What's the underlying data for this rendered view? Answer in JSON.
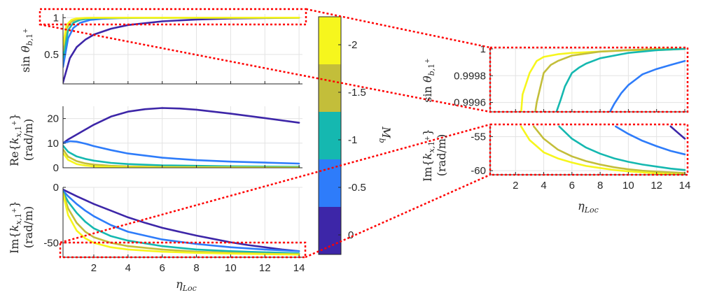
{
  "chart_data": [
    {
      "type": "line",
      "panel": "main-top",
      "ylabel": "sin θb,1+",
      "xlim": [
        0.2,
        14.2
      ],
      "ylim": [
        0.1,
        1.05
      ],
      "yticks": [
        0.5,
        1
      ],
      "ytick_labels": [
        "0.5",
        "1"
      ],
      "grid": true,
      "series": [
        {
          "color": "#3d26a8",
          "x": [
            0.2,
            0.6,
            1,
            1.5,
            2,
            3,
            4,
            6,
            8,
            10,
            12,
            14
          ],
          "y": [
            0.12,
            0.45,
            0.6,
            0.7,
            0.77,
            0.85,
            0.9,
            0.95,
            0.975,
            0.988,
            0.995,
            1.0
          ]
        },
        {
          "color": "#2e7cfa",
          "x": [
            0.2,
            0.5,
            0.8,
            1.2,
            1.8,
            2.5,
            3.5,
            5,
            8,
            14
          ],
          "y": [
            0.33,
            0.72,
            0.86,
            0.93,
            0.97,
            0.985,
            0.993,
            0.998,
            1.0,
            1.0
          ]
        },
        {
          "color": "#15b8b0",
          "x": [
            0.2,
            0.5,
            0.8,
            1.2,
            1.8,
            2.5,
            4,
            8,
            14
          ],
          "y": [
            0.45,
            0.83,
            0.93,
            0.97,
            0.99,
            0.996,
            0.999,
            1.0,
            1.0
          ]
        },
        {
          "color": "#c3be3a",
          "x": [
            0.2,
            0.4,
            0.7,
            1,
            1.5,
            2.2,
            4,
            8,
            14
          ],
          "y": [
            0.55,
            0.85,
            0.95,
            0.98,
            0.995,
            0.998,
            1.0,
            1.0,
            1.0
          ]
        },
        {
          "color": "#f6f61d",
          "x": [
            0.2,
            0.4,
            0.7,
            1,
            1.5,
            2.2,
            4,
            8,
            14
          ],
          "y": [
            0.63,
            0.9,
            0.97,
            0.99,
            0.998,
            1.0,
            1.0,
            1.0,
            1.0
          ]
        }
      ]
    },
    {
      "type": "line",
      "panel": "main-middle",
      "ylabel": "Re{kx,1+} (rad/m)",
      "xlim": [
        0.2,
        14.2
      ],
      "ylim": [
        0,
        25
      ],
      "yticks": [
        0,
        10,
        20
      ],
      "ytick_labels": [
        "0",
        "10",
        "20"
      ],
      "grid": true,
      "series": [
        {
          "color": "#3d26a8",
          "x": [
            0.2,
            0.5,
            1,
            1.5,
            2,
            3,
            4,
            5,
            6,
            7,
            8,
            10,
            12,
            14
          ],
          "y": [
            10,
            11.5,
            13.5,
            15.5,
            17.5,
            20.8,
            22.8,
            23.8,
            24.3,
            24.1,
            23.6,
            22,
            20.2,
            18.3
          ]
        },
        {
          "color": "#2e7cfa",
          "x": [
            0.2,
            0.6,
            1,
            1.5,
            2,
            3,
            4,
            6,
            8,
            10,
            12,
            14
          ],
          "y": [
            10,
            10.8,
            10.6,
            9.8,
            8.8,
            7.2,
            5.8,
            4.1,
            3.1,
            2.5,
            2.1,
            1.7
          ]
        },
        {
          "color": "#15b8b0",
          "x": [
            0.2,
            0.5,
            1,
            1.5,
            2,
            3,
            4,
            6,
            8,
            10,
            14
          ],
          "y": [
            9,
            6.5,
            4.6,
            3.6,
            2.9,
            2,
            1.5,
            1,
            0.8,
            0.6,
            0.4
          ]
        },
        {
          "color": "#c3be3a",
          "x": [
            0.2,
            0.5,
            1,
            1.5,
            2,
            3,
            4,
            6,
            8,
            14
          ],
          "y": [
            7.5,
            4.5,
            2.7,
            1.8,
            1.3,
            0.8,
            0.55,
            0.35,
            0.25,
            0.1
          ]
        },
        {
          "color": "#f6f61d",
          "x": [
            0.2,
            0.5,
            1,
            1.5,
            2,
            3,
            4,
            6,
            14
          ],
          "y": [
            6,
            3.2,
            1.5,
            0.9,
            0.6,
            0.35,
            0.2,
            0.1,
            0.05
          ]
        }
      ]
    },
    {
      "type": "line",
      "panel": "main-bottom",
      "xlabel": "ηLoc",
      "ylabel": "Im{kx,1+} (rad/m)",
      "xlim": [
        0.2,
        14.2
      ],
      "ylim": [
        -63,
        0
      ],
      "xticks": [
        2,
        4,
        6,
        8,
        10,
        12,
        14
      ],
      "xtick_labels": [
        "2",
        "4",
        "6",
        "8",
        "10",
        "12",
        "14"
      ],
      "yticks": [
        -50,
        0
      ],
      "ytick_labels": [
        "-50",
        "0"
      ],
      "grid": true,
      "series": [
        {
          "color": "#3d26a8",
          "x": [
            0.2,
            1,
            2,
            3,
            4,
            5,
            6,
            7,
            8,
            9,
            10,
            11,
            12,
            13,
            14
          ],
          "y": [
            -2,
            -8,
            -15,
            -21,
            -27,
            -32,
            -36.5,
            -40,
            -43.5,
            -46.5,
            -49.5,
            -52,
            -54,
            -56,
            -57.5
          ]
        },
        {
          "color": "#2e7cfa",
          "x": [
            0.2,
            0.5,
            1,
            1.5,
            2,
            3,
            4,
            6,
            8,
            10,
            12,
            14
          ],
          "y": [
            -3,
            -8,
            -15,
            -21,
            -26,
            -34,
            -40,
            -47,
            -51,
            -54,
            -56,
            -57.5
          ]
        },
        {
          "color": "#15b8b0",
          "x": [
            0.2,
            0.5,
            1,
            1.5,
            2,
            3,
            4,
            6,
            8,
            10,
            12,
            14
          ],
          "y": [
            -4,
            -13,
            -23,
            -31,
            -37,
            -44,
            -48,
            -53,
            -56,
            -57.5,
            -58.5,
            -59.5
          ]
        },
        {
          "color": "#c3be3a",
          "x": [
            0.2,
            0.5,
            1,
            1.5,
            2,
            3,
            4,
            6,
            8,
            10,
            12,
            14
          ],
          "y": [
            -5,
            -19,
            -32,
            -40,
            -45,
            -50,
            -53,
            -56,
            -58,
            -59,
            -59.8,
            -60.3
          ]
        },
        {
          "color": "#f6f61d",
          "x": [
            0.2,
            0.5,
            1,
            1.5,
            2,
            3,
            4,
            6,
            8,
            10,
            12,
            14
          ],
          "y": [
            -6,
            -25,
            -39,
            -46,
            -50,
            -54,
            -56,
            -58,
            -59,
            -59.7,
            -60.2,
            -60.6
          ]
        }
      ]
    },
    {
      "type": "line",
      "panel": "zoom-top",
      "ylabel": "sin θb,1+",
      "xlim": [
        0.2,
        14.2
      ],
      "ylim": [
        0.99953,
        1.00001
      ],
      "yticks": [
        0.9996,
        0.9998,
        1
      ],
      "ytick_labels": [
        "0.9996",
        "0.9998",
        "1"
      ],
      "grid": true,
      "series": [
        {
          "color": "#f6f61d",
          "x": [
            2.4,
            2.5,
            3,
            3.5,
            4,
            5,
            6,
            8,
            10,
            12,
            14
          ],
          "y": [
            0.99953,
            0.99966,
            0.99982,
            0.99991,
            0.99994,
            0.99996,
            0.99997,
            0.99998,
            0.99999,
            0.99999,
            1.0
          ]
        },
        {
          "color": "#c3be3a",
          "x": [
            3.4,
            3.5,
            4,
            4.5,
            5,
            6,
            8,
            10,
            12,
            14
          ],
          "y": [
            0.99953,
            0.9996,
            0.99982,
            0.99988,
            0.99991,
            0.99995,
            0.99998,
            0.99999,
            1.0,
            1.0
          ]
        },
        {
          "color": "#15b8b0",
          "x": [
            4.9,
            5.2,
            5.5,
            6,
            6.5,
            7,
            8,
            10,
            12,
            14
          ],
          "y": [
            0.99953,
            0.99962,
            0.99972,
            0.99982,
            0.99986,
            0.99989,
            0.99993,
            0.99997,
            0.99999,
            1.0
          ]
        },
        {
          "color": "#2e7cfa",
          "x": [
            8.7,
            9,
            9.5,
            10,
            10.5,
            11,
            12,
            13,
            14
          ],
          "y": [
            0.99953,
            0.99959,
            0.99967,
            0.99973,
            0.99977,
            0.99981,
            0.99985,
            0.99988,
            0.99991
          ]
        }
      ]
    },
    {
      "type": "line",
      "panel": "zoom-bottom",
      "xlabel": "ηLoc",
      "ylabel": "Im{kx,1+} (rad/m)",
      "xlim": [
        0.2,
        14.2
      ],
      "ylim": [
        -60.6,
        -53.2
      ],
      "xticks": [
        2,
        4,
        6,
        8,
        10,
        12,
        14
      ],
      "xtick_labels": [
        "2",
        "4",
        "6",
        "8",
        "10",
        "12",
        "14"
      ],
      "yticks": [
        -60,
        -55
      ],
      "ytick_labels": [
        "-60",
        "-55"
      ],
      "grid": true,
      "series": [
        {
          "color": "#3d26a8",
          "x": [
            13,
            13.5,
            14
          ],
          "y": [
            -53.5,
            -54.4,
            -55.3
          ]
        },
        {
          "color": "#2e7cfa",
          "x": [
            9.1,
            10,
            11,
            12,
            13,
            14
          ],
          "y": [
            -53.5,
            -54.6,
            -55.6,
            -56.4,
            -57.1,
            -57.6
          ]
        },
        {
          "color": "#15b8b0",
          "x": [
            5.1,
            6,
            7,
            8,
            9,
            10,
            11,
            12,
            13,
            14
          ],
          "y": [
            -53.5,
            -55.3,
            -56.6,
            -57.5,
            -58.2,
            -58.7,
            -59.1,
            -59.4,
            -59.7,
            -59.9
          ]
        },
        {
          "color": "#c3be3a",
          "x": [
            3.3,
            4,
            5,
            6,
            7,
            8,
            9,
            10,
            11,
            12,
            13,
            14
          ],
          "y": [
            -53.5,
            -55.3,
            -56.9,
            -57.9,
            -58.6,
            -59.1,
            -59.5,
            -59.8,
            -60.0,
            -60.15,
            -60.25,
            -60.35
          ]
        },
        {
          "color": "#f6f61d",
          "x": [
            2.4,
            3,
            4,
            5,
            6,
            7,
            8,
            9,
            10,
            11,
            12,
            13,
            14
          ],
          "y": [
            -53.5,
            -55.5,
            -57.3,
            -58.2,
            -58.8,
            -59.3,
            -59.6,
            -59.9,
            -60.1,
            -60.25,
            -60.4,
            -60.5,
            -60.6
          ]
        }
      ]
    }
  ],
  "colorbar": {
    "label": "Mb",
    "colors": [
      "#f6f61d",
      "#c3be3a",
      "#15b8b0",
      "#2e7cfa",
      "#3d26a8"
    ],
    "tick_labels": [
      "-2",
      "-1.5",
      "-1",
      "-0.5",
      "0"
    ]
  },
  "highlight_color": "#ff0000"
}
